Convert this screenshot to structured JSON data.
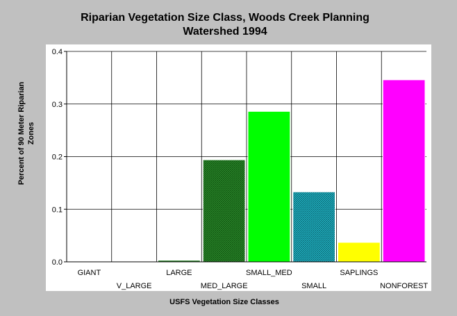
{
  "chart_data": {
    "type": "bar",
    "title_line1": "Riparian Vegetation Size Class, Woods Creek Planning",
    "title_line2": "Watershed 1994",
    "xlabel": "USFS Vegetation Size Classes",
    "ylabel_line1": "Percent of 90 Meter Riparian",
    "ylabel_line2": "Zones",
    "ylim": [
      0,
      0.4
    ],
    "yticks": [
      "0.0",
      "0.1",
      "0.2",
      "0.3",
      "0.4"
    ],
    "grid": true,
    "categories": [
      "GIANT",
      "V_LARGE",
      "LARGE",
      "MED_LARGE",
      "SMALL_MED",
      "SMALL",
      "SAPLINGS",
      "NONFOREST"
    ],
    "values": [
      0,
      0,
      0.003,
      0.194,
      0.286,
      0.133,
      0.037,
      0.346
    ],
    "colors": [
      "#006400",
      "#006400",
      "#1e7a1e",
      "#1e7a1e",
      "#00ff00",
      "#00a0b0",
      "#ffff00",
      "#ff00ff"
    ],
    "hatched": [
      false,
      false,
      false,
      true,
      false,
      true,
      false,
      false
    ]
  }
}
